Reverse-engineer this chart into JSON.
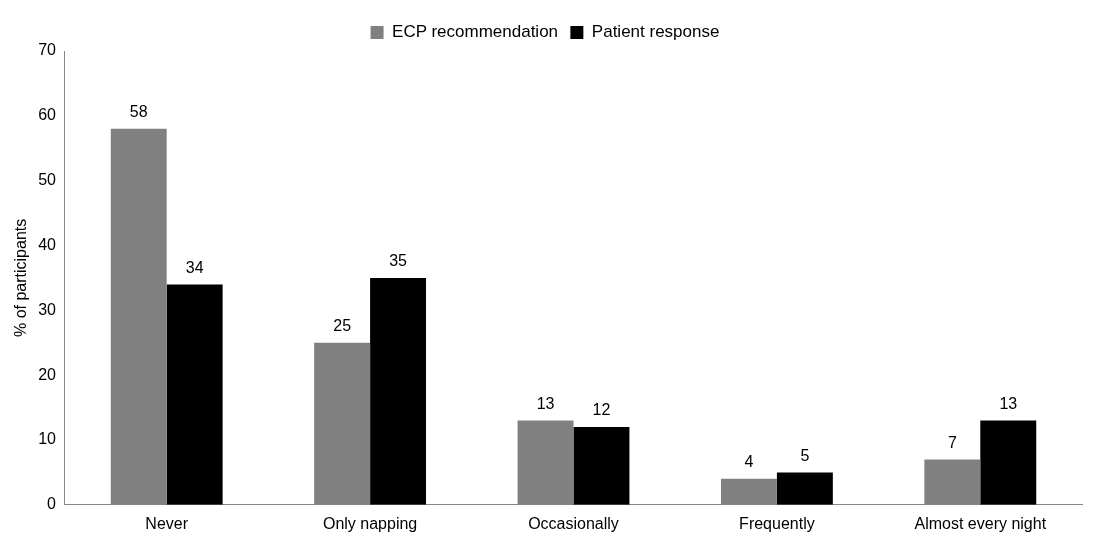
{
  "chart_data": {
    "type": "bar",
    "ylabel": "% of participants",
    "categories": [
      "Never",
      "Only napping",
      "Occasionally",
      "Frequently",
      "Almost every night"
    ],
    "series": [
      {
        "name": "ECP recommendation",
        "color": "#808080",
        "values": [
          58,
          25,
          13,
          4,
          7
        ]
      },
      {
        "name": "Patient response",
        "color": "#000000",
        "values": [
          34,
          35,
          12,
          5,
          13
        ]
      }
    ],
    "ylim": [
      0,
      70
    ],
    "yticks": [
      0,
      10,
      20,
      30,
      40,
      50,
      60,
      70
    ],
    "grid": false,
    "legend": "top",
    "data_labels": true
  }
}
